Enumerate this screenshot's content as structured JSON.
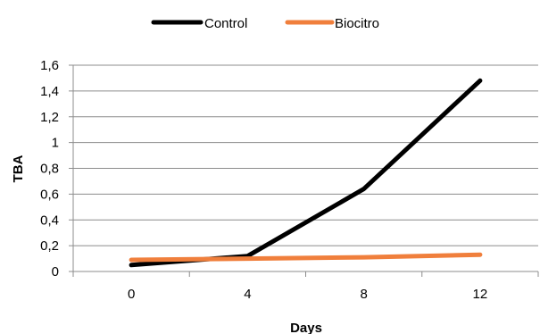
{
  "chart_data": {
    "type": "line",
    "title": "",
    "xlabel": "Days",
    "ylabel": "TBA",
    "categories": [
      "0",
      "4",
      "8",
      "12"
    ],
    "ylim": [
      0,
      1.6
    ],
    "yticks": [
      "0",
      "0,2",
      "0,4",
      "0,6",
      "0,8",
      "1",
      "1,2",
      "1,4",
      "1,6"
    ],
    "grid": "horizontal",
    "legend_position": "top",
    "series": [
      {
        "name": "Control",
        "color": "#000000",
        "values": [
          0.05,
          0.12,
          0.64,
          1.48
        ]
      },
      {
        "name": "Biocitro",
        "color": "#F07F3C",
        "values": [
          0.09,
          0.1,
          0.11,
          0.13
        ]
      }
    ]
  }
}
